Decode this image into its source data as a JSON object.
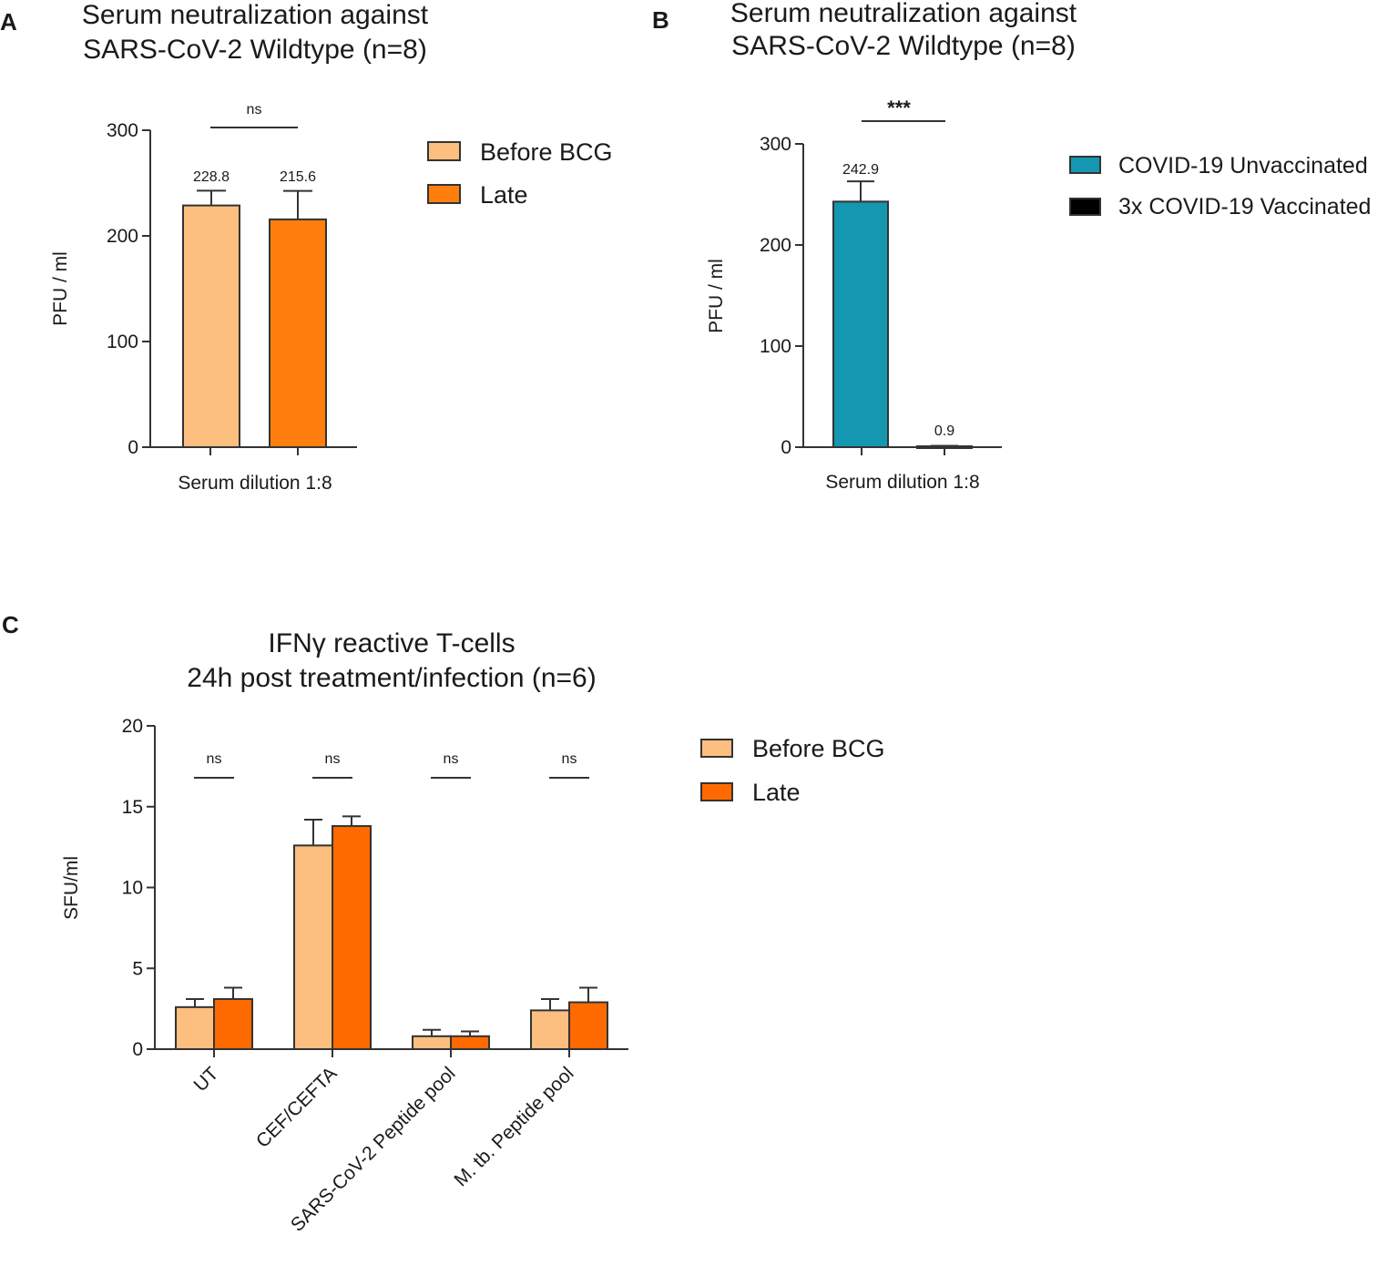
{
  "panels": {
    "A": {
      "letter": "A",
      "title_line1": "Serum neutralization against",
      "title_line2": "SARS-CoV-2 Wildtype  (n=8)",
      "ylabel": "PFU  / ml",
      "xlabel": "Serum dilution 1:8",
      "sig": "ns",
      "legend": [
        "Before BCG",
        "Late"
      ]
    },
    "B": {
      "letter": "B",
      "title_line1": "Serum neutralization against",
      "title_line2": "SARS-CoV-2 Wildtype  (n=8)",
      "ylabel": "PFU  / ml",
      "xlabel": "Serum dilution 1:8",
      "sig": "***",
      "legend": [
        "COVID-19 Unvaccinated",
        "3x COVID-19 Vaccinated"
      ]
    },
    "C": {
      "letter": "C",
      "title_line1": "IFNγ reactive T-cells",
      "title_line2": "24h post treatment/infection (n=6)",
      "ylabel": "SFU/ml",
      "sig": [
        "ns",
        "ns",
        "ns",
        "ns"
      ],
      "legend": [
        "Before BCG",
        "Late"
      ]
    }
  },
  "chart_data": [
    {
      "id": "A",
      "type": "bar",
      "title": "Serum neutralization against SARS-CoV-2 Wildtype  (n=8)",
      "xlabel": "Serum dilution 1:8",
      "ylabel": "PFU  / ml",
      "ylim": [
        0,
        300
      ],
      "yticks": [
        0,
        100,
        200,
        300
      ],
      "series": [
        {
          "name": "Before BCG",
          "value": 228.8,
          "error": 14,
          "label": "228.8",
          "color": "#fdbf7f"
        },
        {
          "name": "Late",
          "value": 215.6,
          "error": 27,
          "label": "215.6",
          "color": "#ff7f0e"
        }
      ]
    },
    {
      "id": "B",
      "type": "bar",
      "title": "Serum neutralization against SARS-CoV-2 Wildtype  (n=8)",
      "xlabel": "Serum dilution 1:8",
      "ylabel": "PFU  / ml",
      "ylim": [
        0,
        300
      ],
      "yticks": [
        0,
        100,
        200,
        300
      ],
      "series": [
        {
          "name": "COVID-19 Unvaccinated",
          "value": 242.9,
          "error": 20,
          "label": "242.9",
          "color": "#1497b1"
        },
        {
          "name": "3x COVID-19 Vaccinated",
          "value": 0.9,
          "error": 0.5,
          "label": "0.9",
          "color": "#000000"
        }
      ]
    },
    {
      "id": "C",
      "type": "bar",
      "title": "IFNγ reactive T-cells 24h post treatment/infection (n=6)",
      "ylabel": "SFU/ml",
      "ylim": [
        0,
        20
      ],
      "yticks": [
        0,
        5,
        10,
        15,
        20
      ],
      "categories": [
        "UT",
        "CEF/CEFTA",
        "SARS-CoV-2 Peptide pool",
        "M. tb. Peptide pool"
      ],
      "series": [
        {
          "name": "Before BCG",
          "values": [
            2.6,
            12.6,
            0.8,
            2.4
          ],
          "errors": [
            0.5,
            1.6,
            0.4,
            0.7
          ],
          "color": "#fdbf7f"
        },
        {
          "name": "Late",
          "values": [
            3.1,
            13.8,
            0.8,
            2.9
          ],
          "errors": [
            0.7,
            0.6,
            0.3,
            0.9
          ],
          "color": "#ff6a00"
        }
      ]
    }
  ]
}
